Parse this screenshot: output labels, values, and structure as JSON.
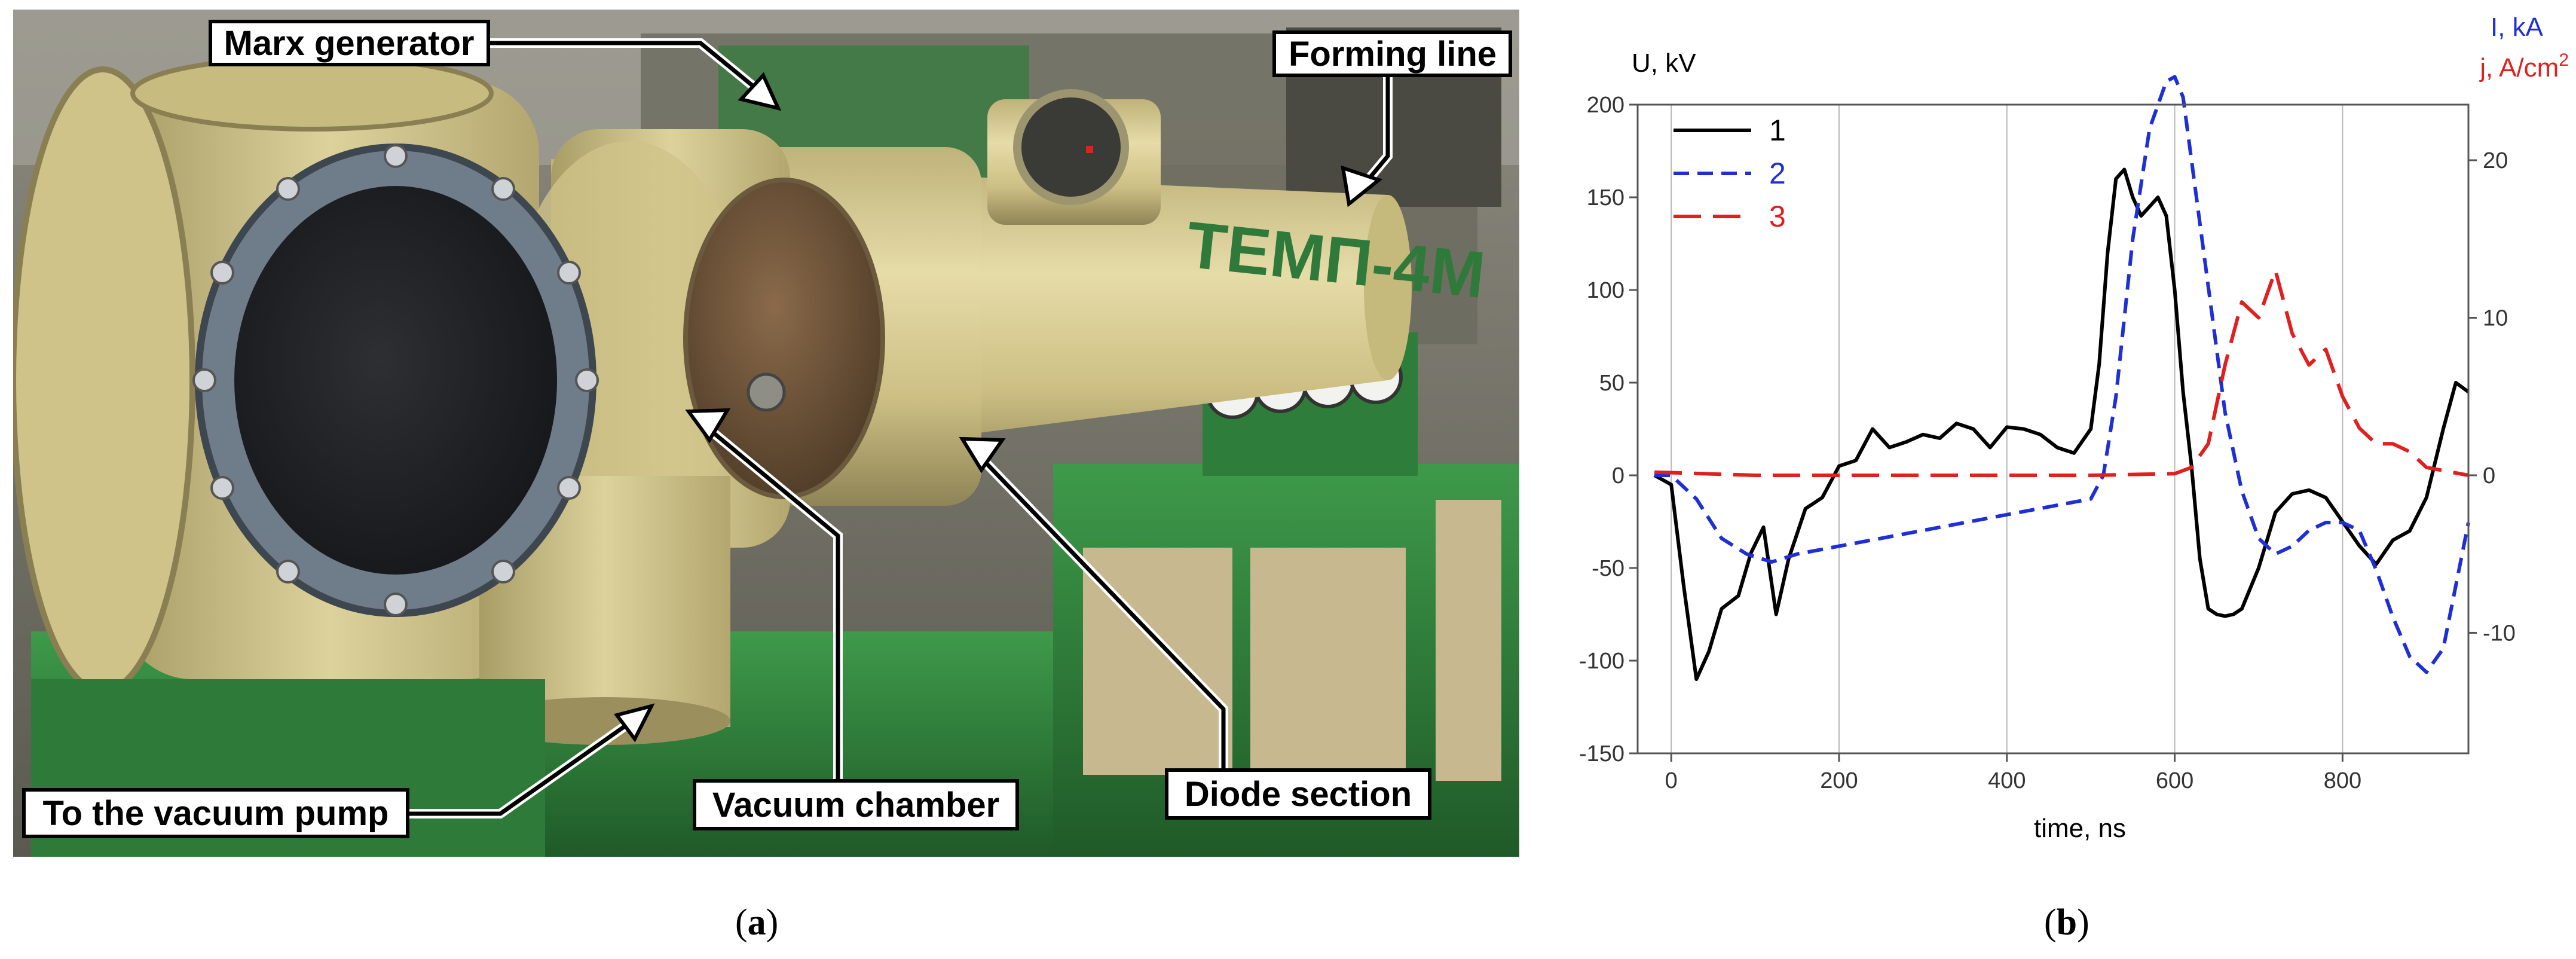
{
  "photo": {
    "labels": {
      "marx": "Marx generator",
      "forming": "Forming line",
      "vacuum_pump": "To the vacuum pump",
      "vacuum_chamber": "Vacuum chamber",
      "diode": "Diode section"
    },
    "lettering": "ТЕМП-4М"
  },
  "captions": {
    "a": "a",
    "b": "b"
  },
  "colors": {
    "series1": "#000000",
    "series2": "#1f2fd6",
    "series3": "#e01f1f",
    "machine_body": "#d8cc8f",
    "cabinet_green": "#2f7d3a"
  },
  "chart_data": {
    "type": "line",
    "xlabel": "time, ns",
    "ylabel_left": "U, kV",
    "ylabel_right_1": "I, kA",
    "ylabel_right_2": "j, A/cm",
    "ylabel_right_2_sup": "2",
    "xlim": [
      -40,
      950
    ],
    "ylim_left": [
      -150,
      200
    ],
    "ylim_right": [
      -17.65,
      23.53
    ],
    "x_ticks": [
      0,
      200,
      400,
      600,
      800
    ],
    "y_ticks_left": [
      -150,
      -100,
      -50,
      0,
      50,
      100,
      150,
      200
    ],
    "y_ticks_right": [
      -10,
      0,
      10,
      20
    ],
    "grid": "vertical",
    "legend_position": "top-left",
    "series": [
      {
        "name": "1",
        "axis": "left",
        "dash": "solid",
        "x": [
          -20,
          0,
          15,
          30,
          45,
          60,
          80,
          95,
          110,
          125,
          140,
          160,
          180,
          200,
          220,
          240,
          260,
          280,
          300,
          320,
          340,
          360,
          380,
          400,
          420,
          440,
          460,
          480,
          500,
          510,
          520,
          530,
          540,
          550,
          560,
          570,
          580,
          590,
          600,
          610,
          620,
          630,
          640,
          650,
          660,
          670,
          680,
          700,
          720,
          740,
          760,
          780,
          800,
          820,
          840,
          860,
          880,
          900,
          920,
          935,
          950
        ],
        "y": [
          0,
          -5,
          -60,
          -110,
          -95,
          -72,
          -65,
          -42,
          -28,
          -75,
          -45,
          -18,
          -12,
          5,
          8,
          25,
          15,
          18,
          22,
          20,
          28,
          25,
          15,
          26,
          25,
          22,
          15,
          12,
          25,
          60,
          120,
          160,
          165,
          150,
          140,
          145,
          150,
          140,
          100,
          45,
          5,
          -45,
          -72,
          -75,
          -76,
          -75,
          -72,
          -50,
          -20,
          -10,
          -8,
          -12,
          -25,
          -38,
          -48,
          -35,
          -30,
          -12,
          25,
          50,
          45
        ]
      },
      {
        "name": "2",
        "axis": "right",
        "dash": "dashed",
        "x": [
          -20,
          0,
          30,
          60,
          90,
          120,
          150,
          200,
          250,
          300,
          350,
          400,
          450,
          500,
          515,
          530,
          550,
          570,
          590,
          600,
          610,
          620,
          640,
          660,
          680,
          700,
          720,
          740,
          760,
          780,
          800,
          820,
          840,
          860,
          880,
          900,
          920,
          950
        ],
        "y": [
          0,
          0,
          -1.5,
          -4,
          -5,
          -5.5,
          -5,
          -4.5,
          -4,
          -3.5,
          -3,
          -2.5,
          -2,
          -1.5,
          0,
          5,
          15,
          22,
          25,
          25.3,
          24,
          20,
          12,
          4,
          -1,
          -4,
          -5,
          -4.5,
          -3.5,
          -3,
          -3,
          -3.5,
          -6,
          -9,
          -11.5,
          -12.5,
          -11,
          -3
        ]
      },
      {
        "name": "3",
        "axis": "right",
        "dash": "longdash",
        "x": [
          -20,
          100,
          200,
          300,
          400,
          500,
          600,
          620,
          640,
          660,
          680,
          700,
          720,
          740,
          760,
          780,
          800,
          820,
          840,
          860,
          880,
          900,
          920,
          950
        ],
        "y": [
          0.2,
          0,
          0,
          0,
          0,
          0,
          0.1,
          0.5,
          2,
          7,
          11,
          10,
          13,
          9,
          7,
          8,
          5,
          3,
          2,
          2,
          1.5,
          0.5,
          0.3,
          0
        ]
      }
    ]
  }
}
